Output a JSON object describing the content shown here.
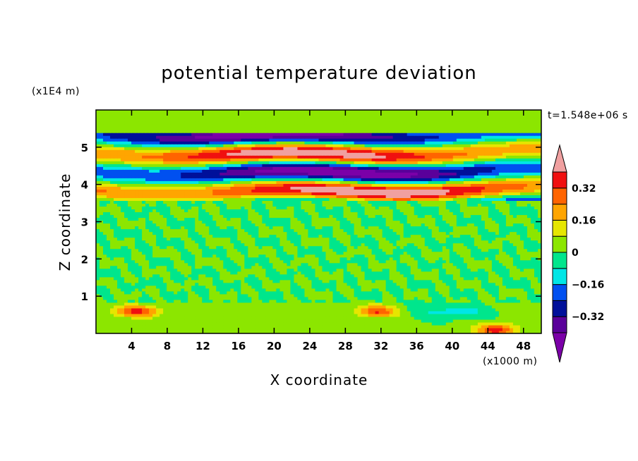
{
  "chart_data": {
    "type": "heatmap",
    "title": "potential temperature deviation",
    "xlabel": "X coordinate",
    "ylabel": "Z coordinate",
    "x_unit": "(x1000 m)",
    "y_unit": "(x1E4 m)",
    "time_label": "t=1.548e+06 s",
    "xlim": [
      0,
      50
    ],
    "ylim": [
      0,
      6
    ],
    "x_ticks": [
      4,
      8,
      12,
      16,
      20,
      24,
      28,
      32,
      36,
      40,
      44,
      48
    ],
    "x_tick_labels": [
      "4",
      "8",
      "12",
      "16",
      "20",
      "24",
      "28",
      "32",
      "36",
      "40",
      "44",
      "48"
    ],
    "y_ticks": [
      1,
      2,
      3,
      4,
      5
    ],
    "y_tick_labels": [
      "1",
      "2",
      "3",
      "4",
      "5"
    ],
    "colorbar": {
      "levels": [
        -0.48,
        -0.4,
        -0.32,
        -0.24,
        -0.16,
        -0.08,
        0,
        0.08,
        0.16,
        0.24,
        0.32,
        0.4,
        0.48
      ],
      "labeled_levels": [
        0.32,
        0.16,
        0,
        -0.16,
        -0.32
      ],
      "labels": [
        "0.32",
        "0.16",
        "0",
        "−0.16",
        "−0.32"
      ],
      "colors": [
        "#7b00a8",
        "#5a009a",
        "#00109a",
        "#0050f0",
        "#00e6e6",
        "#00e68c",
        "#8ce600",
        "#e6e600",
        "#ffa500",
        "#ff6400",
        "#f01010",
        "#f0a0a0"
      ],
      "extend": "both"
    },
    "bands": [
      {
        "z_range": [
          0,
          0.8
        ],
        "description": "near-surface layer with warm anomalies",
        "dominant_value": 0.04
      },
      {
        "z_range": [
          0.8,
          3.6
        ],
        "description": "weak mixed anomalies",
        "dominant_value": 0.0
      },
      {
        "z_range": [
          3.6,
          5.4
        ],
        "description": "strong alternating warm/cold layers",
        "dominant_value_range": [
          -0.48,
          0.48
        ]
      },
      {
        "z_range": [
          5.4,
          6.0
        ],
        "description": "weak anomalies aloft",
        "dominant_value": 0.02
      }
    ],
    "grid": false
  }
}
